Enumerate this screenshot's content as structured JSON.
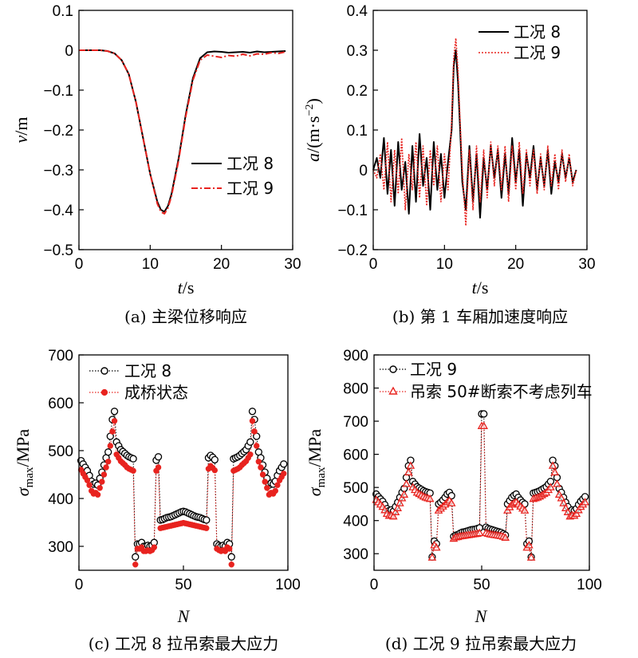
{
  "chart_data": [
    {
      "type": "line",
      "caption": "(a) 主梁位移响应",
      "xlabel": "t/s",
      "ylabel": "v/m",
      "xlim": [
        0,
        30
      ],
      "ylim": [
        -0.5,
        0.1
      ],
      "xticks": [
        "0",
        "10",
        "20",
        "30"
      ],
      "yticks": [
        "0.1",
        "0",
        "−0.1",
        "−0.2",
        "−0.3",
        "−0.4",
        "−0.5"
      ],
      "legend_position": "lower-right",
      "series": [
        {
          "name": "工况 8",
          "color": "#000000",
          "style": "solid",
          "x": [
            0,
            1,
            2,
            3,
            4,
            5,
            6,
            7,
            8,
            9,
            10,
            11,
            11.5,
            12,
            12.5,
            13,
            14,
            15,
            16,
            17,
            18,
            19,
            20,
            21,
            22,
            23,
            24,
            25,
            26,
            27,
            28,
            29
          ],
          "y": [
            0,
            0,
            0,
            0,
            -0.002,
            -0.008,
            -0.025,
            -0.06,
            -0.13,
            -0.22,
            -0.31,
            -0.38,
            -0.4,
            -0.405,
            -0.39,
            -0.36,
            -0.27,
            -0.16,
            -0.07,
            -0.02,
            -0.005,
            -0.003,
            -0.004,
            -0.006,
            -0.005,
            -0.004,
            -0.006,
            -0.003,
            -0.005,
            -0.004,
            -0.003,
            -0.002
          ]
        },
        {
          "name": "工况 9",
          "color": "#e8231f",
          "style": "dash-dot",
          "x": [
            0,
            1,
            2,
            3,
            4,
            5,
            6,
            7,
            8,
            9,
            10,
            11,
            11.5,
            12,
            12.5,
            13,
            14,
            15,
            16,
            17,
            18,
            19,
            20,
            21,
            22,
            23,
            24,
            25,
            26,
            27,
            28,
            29
          ],
          "y": [
            0,
            0,
            0,
            0,
            -0.002,
            -0.008,
            -0.025,
            -0.06,
            -0.13,
            -0.22,
            -0.31,
            -0.385,
            -0.405,
            -0.41,
            -0.395,
            -0.365,
            -0.275,
            -0.165,
            -0.075,
            -0.025,
            -0.012,
            -0.015,
            -0.018,
            -0.013,
            -0.015,
            -0.01,
            -0.014,
            -0.009,
            -0.01,
            -0.006,
            -0.008,
            -0.004
          ]
        }
      ]
    },
    {
      "type": "line",
      "caption": "(b) 第 1 车厢加速度响应",
      "xlabel": "t/s",
      "ylabel": "a/(m·s⁻²)",
      "xlim": [
        0,
        30
      ],
      "ylim": [
        -0.2,
        0.4
      ],
      "xticks": [
        "0",
        "10",
        "20",
        "30"
      ],
      "yticks": [
        "0.4",
        "0.3",
        "0.2",
        "0.1",
        "0",
        "−0.1",
        "−0.2"
      ],
      "legend_position": "top-right",
      "series": [
        {
          "name": "工况 8",
          "color": "#000000",
          "style": "solid",
          "x": [
            0,
            0.5,
            1,
            1.5,
            2,
            2.5,
            3,
            3.5,
            4,
            4.5,
            5,
            5.5,
            6,
            6.5,
            7,
            7.5,
            8,
            8.5,
            9,
            9.5,
            10,
            10.5,
            11,
            11.3,
            11.6,
            11.9,
            12.2,
            12.5,
            13,
            13.5,
            14,
            14.5,
            15,
            15.5,
            16,
            16.5,
            17,
            17.5,
            18,
            18.5,
            19,
            19.5,
            20,
            20.5,
            21,
            21.5,
            22,
            22.5,
            23,
            23.5,
            24,
            24.5,
            25,
            25.5,
            26,
            26.5,
            27,
            27.5,
            28,
            28.5
          ],
          "y": [
            0,
            0.03,
            -0.02,
            0.08,
            -0.06,
            0.05,
            -0.09,
            0.07,
            -0.05,
            0.02,
            -0.11,
            0.06,
            -0.08,
            0.09,
            -0.04,
            0.03,
            -0.1,
            0.07,
            -0.05,
            0.04,
            -0.07,
            0.02,
            0.1,
            0.26,
            0.3,
            0.22,
            0.1,
            -0.03,
            -0.1,
            0.06,
            -0.08,
            0.04,
            -0.12,
            0.03,
            -0.05,
            0.06,
            -0.02,
            0.05,
            -0.07,
            0.04,
            -0.06,
            0.08,
            -0.03,
            0.05,
            -0.09,
            0.04,
            -0.02,
            0.06,
            -0.05,
            0.03,
            -0.04,
            0.05,
            -0.06,
            0.02,
            -0.03,
            0.04,
            -0.02,
            0.03,
            -0.03,
            0
          ]
        },
        {
          "name": "工况 9",
          "color": "#e8231f",
          "style": "dotted",
          "x": [
            0,
            0.5,
            1,
            1.5,
            2,
            2.5,
            3,
            3.5,
            4,
            4.5,
            5,
            5.5,
            6,
            6.5,
            7,
            7.5,
            8,
            8.5,
            9,
            9.5,
            10,
            10.5,
            11,
            11.3,
            11.6,
            11.9,
            12.2,
            12.5,
            13,
            13.5,
            14,
            14.5,
            15,
            15.5,
            16,
            16.5,
            17,
            17.5,
            18,
            18.5,
            19,
            19.5,
            20,
            20.5,
            21,
            21.5,
            22,
            22.5,
            23,
            23.5,
            24,
            24.5,
            25,
            25.5,
            26,
            26.5,
            27,
            27.5,
            28,
            28.5
          ],
          "y": [
            0,
            -0.02,
            0.04,
            -0.05,
            0.07,
            -0.08,
            0.05,
            -0.06,
            0.08,
            -0.1,
            0.04,
            -0.05,
            0.07,
            -0.07,
            0.06,
            -0.09,
            0.05,
            -0.04,
            0.06,
            -0.08,
            0.04,
            -0.05,
            0.12,
            0.28,
            0.33,
            0.25,
            0.12,
            0,
            -0.14,
            0.05,
            -0.1,
            0.06,
            -0.08,
            0.05,
            -0.07,
            0.07,
            -0.04,
            0.06,
            -0.05,
            0.06,
            -0.08,
            0.06,
            -0.05,
            0.07,
            -0.06,
            0.05,
            -0.04,
            0.05,
            -0.06,
            0.04,
            -0.05,
            0.06,
            -0.04,
            0.04,
            -0.05,
            0.05,
            -0.03,
            0.04,
            -0.04,
            0
          ]
        }
      ]
    },
    {
      "type": "scatter",
      "caption": "(c) 工况 8 拉吊索最大应力",
      "xlabel": "N",
      "ylabel": "σmax/MPa",
      "xlim": [
        0,
        100
      ],
      "ylim": [
        250,
        700
      ],
      "xticks": [
        "0",
        "50",
        "100"
      ],
      "yticks": [
        "700",
        "600",
        "500",
        "400",
        "300"
      ],
      "legend_position": "top-left",
      "x": [
        1,
        2,
        3,
        4,
        5,
        6,
        7,
        8,
        9,
        10,
        11,
        12,
        13,
        14,
        15,
        16,
        17,
        18,
        19,
        20,
        21,
        22,
        23,
        24,
        25,
        26,
        27,
        28,
        29,
        30,
        31,
        32,
        33,
        34,
        35,
        36,
        37,
        38,
        39,
        40,
        41,
        42,
        43,
        44,
        45,
        46,
        47,
        48,
        49,
        50,
        51,
        52,
        53,
        54,
        55,
        56,
        57,
        58,
        59,
        60,
        61,
        62,
        63,
        64,
        65,
        66,
        67,
        68,
        69,
        70,
        71,
        72,
        73,
        74,
        75,
        76,
        77,
        78,
        79,
        80,
        81,
        82,
        83,
        84,
        85,
        86,
        87,
        88,
        89,
        90,
        91,
        92,
        93,
        94,
        95,
        96,
        97,
        98
      ],
      "series": [
        {
          "name": "工况 8",
          "color": "#000000",
          "marker": "open-circle",
          "values": [
            479,
            472,
            465,
            458,
            448,
            436,
            430,
            432,
            428,
            442,
            455,
            470,
            485,
            497,
            530,
            565,
            582,
            518,
            510,
            502,
            498,
            494,
            490,
            487,
            485,
            483,
            278,
            305,
            305,
            308,
            300,
            300,
            302,
            300,
            302,
            308,
            480,
            487,
            355,
            356,
            358,
            360,
            361,
            362,
            364,
            366,
            368,
            370,
            372,
            373,
            372,
            370,
            368,
            366,
            364,
            362,
            361,
            360,
            358,
            356,
            355,
            485,
            490,
            486,
            481,
            305,
            302,
            300,
            302,
            300,
            308,
            305,
            278,
            483,
            485,
            487,
            490,
            494,
            498,
            502,
            510,
            518,
            582,
            565,
            530,
            497,
            485,
            470,
            455,
            442,
            428,
            432,
            430,
            436,
            448,
            458,
            465,
            472
          ]
        },
        {
          "name": "成桥状态",
          "color": "#e8231f",
          "marker": "filled-circle",
          "values": [
            460,
            452,
            445,
            438,
            428,
            416,
            410,
            412,
            408,
            422,
            435,
            450,
            465,
            477,
            510,
            540,
            562,
            492,
            485,
            478,
            474,
            470,
            465,
            462,
            460,
            458,
            262,
            295,
            295,
            298,
            290,
            290,
            292,
            290,
            292,
            298,
            458,
            465,
            338,
            339,
            340,
            341,
            342,
            343,
            344,
            345,
            346,
            347,
            348,
            349,
            348,
            347,
            346,
            345,
            344,
            343,
            342,
            341,
            340,
            339,
            338,
            462,
            468,
            464,
            459,
            295,
            292,
            290,
            292,
            290,
            298,
            295,
            262,
            458,
            460,
            462,
            465,
            470,
            474,
            478,
            485,
            492,
            562,
            540,
            510,
            477,
            465,
            450,
            435,
            422,
            408,
            412,
            410,
            416,
            428,
            438,
            445,
            452
          ]
        }
      ]
    },
    {
      "type": "scatter",
      "caption": "(d) 工况 9 拉吊索最大应力",
      "xlabel": "N",
      "ylabel": "σmax/MPa",
      "xlim": [
        0,
        100
      ],
      "ylim": [
        250,
        900
      ],
      "xticks": [
        "0",
        "50",
        "100"
      ],
      "yticks": [
        "900",
        "800",
        "700",
        "600",
        "500",
        "400",
        "300"
      ],
      "legend_position": "top-left",
      "x": [
        1,
        2,
        3,
        4,
        5,
        6,
        7,
        8,
        9,
        10,
        11,
        12,
        13,
        14,
        15,
        16,
        17,
        18,
        19,
        20,
        21,
        22,
        23,
        24,
        25,
        26,
        27,
        28,
        29,
        30,
        31,
        32,
        33,
        34,
        35,
        36,
        37,
        38,
        39,
        40,
        41,
        42,
        43,
        44,
        45,
        46,
        47,
        48,
        49,
        50,
        51,
        52,
        53,
        54,
        55,
        56,
        57,
        58,
        59,
        60,
        61,
        62,
        63,
        64,
        65,
        66,
        67,
        68,
        69,
        70,
        71,
        72,
        73,
        74,
        75,
        76,
        77,
        78,
        79,
        80,
        81,
        82,
        83,
        84,
        85,
        86,
        87,
        88,
        89,
        90,
        91,
        92,
        93,
        94,
        95,
        96,
        97,
        98
      ],
      "series": [
        {
          "name": "工况 9",
          "color": "#000000",
          "marker": "open-circle",
          "values": [
            480,
            472,
            465,
            458,
            448,
            436,
            430,
            432,
            428,
            442,
            455,
            470,
            485,
            497,
            530,
            565,
            582,
            518,
            510,
            502,
            498,
            494,
            490,
            487,
            485,
            483,
            290,
            338,
            330,
            450,
            455,
            462,
            470,
            480,
            485,
            475,
            352,
            356,
            358,
            362,
            365,
            366,
            368,
            370,
            372,
            373,
            374,
            376,
            378,
            722,
            722,
            380,
            376,
            374,
            372,
            370,
            368,
            366,
            364,
            360,
            356,
            450,
            460,
            470,
            476,
            480,
            470,
            462,
            455,
            450,
            330,
            338,
            290,
            483,
            485,
            487,
            490,
            494,
            498,
            502,
            510,
            518,
            582,
            565,
            530,
            497,
            485,
            470,
            455,
            442,
            428,
            432,
            430,
            436,
            448,
            458,
            465,
            472
          ]
        },
        {
          "name": "吊索 50#断索不考虑列车",
          "color": "#e8231f",
          "marker": "open-triangle",
          "values": [
            462,
            455,
            448,
            441,
            431,
            420,
            414,
            416,
            412,
            425,
            437,
            452,
            467,
            478,
            510,
            545,
            565,
            500,
            492,
            484,
            480,
            476,
            472,
            469,
            467,
            465,
            288,
            325,
            318,
            430,
            436,
            442,
            448,
            455,
            460,
            452,
            345,
            349,
            350,
            352,
            353,
            354,
            355,
            356,
            357,
            358,
            359,
            360,
            362,
            685,
            685,
            362,
            360,
            358,
            357,
            356,
            355,
            354,
            353,
            351,
            348,
            430,
            440,
            448,
            452,
            455,
            448,
            442,
            436,
            430,
            318,
            325,
            288,
            465,
            467,
            469,
            472,
            476,
            480,
            484,
            492,
            500,
            565,
            545,
            510,
            478,
            467,
            452,
            437,
            425,
            412,
            416,
            414,
            420,
            431,
            441,
            448,
            455
          ]
        }
      ]
    }
  ]
}
